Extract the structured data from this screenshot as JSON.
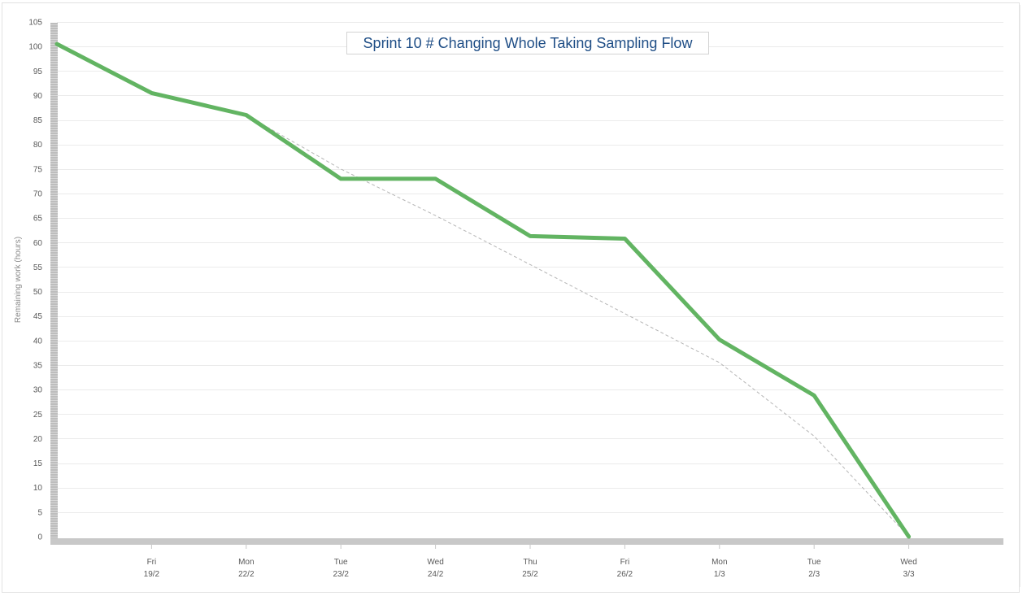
{
  "chart_data": {
    "type": "line",
    "title": "Sprint 10 # Changing Whole Taking Sampling Flow",
    "ylabel": "Remaining work (hours)",
    "xlabel": "",
    "ylim": [
      0,
      105
    ],
    "y_ticks": [
      0,
      5,
      10,
      15,
      20,
      25,
      30,
      35,
      40,
      45,
      50,
      55,
      60,
      65,
      70,
      75,
      80,
      85,
      90,
      95,
      100,
      105
    ],
    "categories": [
      {
        "day": "",
        "date": ""
      },
      {
        "day": "Fri",
        "date": "19/2"
      },
      {
        "day": "Mon",
        "date": "22/2"
      },
      {
        "day": "Tue",
        "date": "23/2"
      },
      {
        "day": "Wed",
        "date": "24/2"
      },
      {
        "day": "Thu",
        "date": "25/2"
      },
      {
        "day": "Fri",
        "date": "26/2"
      },
      {
        "day": "Mon",
        "date": "1/3"
      },
      {
        "day": "Tue",
        "date": "2/3"
      },
      {
        "day": "Wed",
        "date": "3/3"
      }
    ],
    "series": [
      {
        "values": [
          100.5,
          90.5,
          86,
          73,
          73,
          61.3,
          60.8,
          40.2,
          28.8,
          0
        ],
        "color": "#62b462",
        "style": "solid"
      },
      {
        "values": [
          100.5,
          90.5,
          86,
          75,
          65.5,
          55.5,
          45.5,
          35.5,
          20.5,
          0
        ],
        "color": "#b5b5b5",
        "style": "dashed"
      }
    ],
    "grid": true,
    "colors": {
      "grid": "#ebebeb",
      "axis_band": "#c8c8c8",
      "title": "#1f4e86"
    }
  }
}
